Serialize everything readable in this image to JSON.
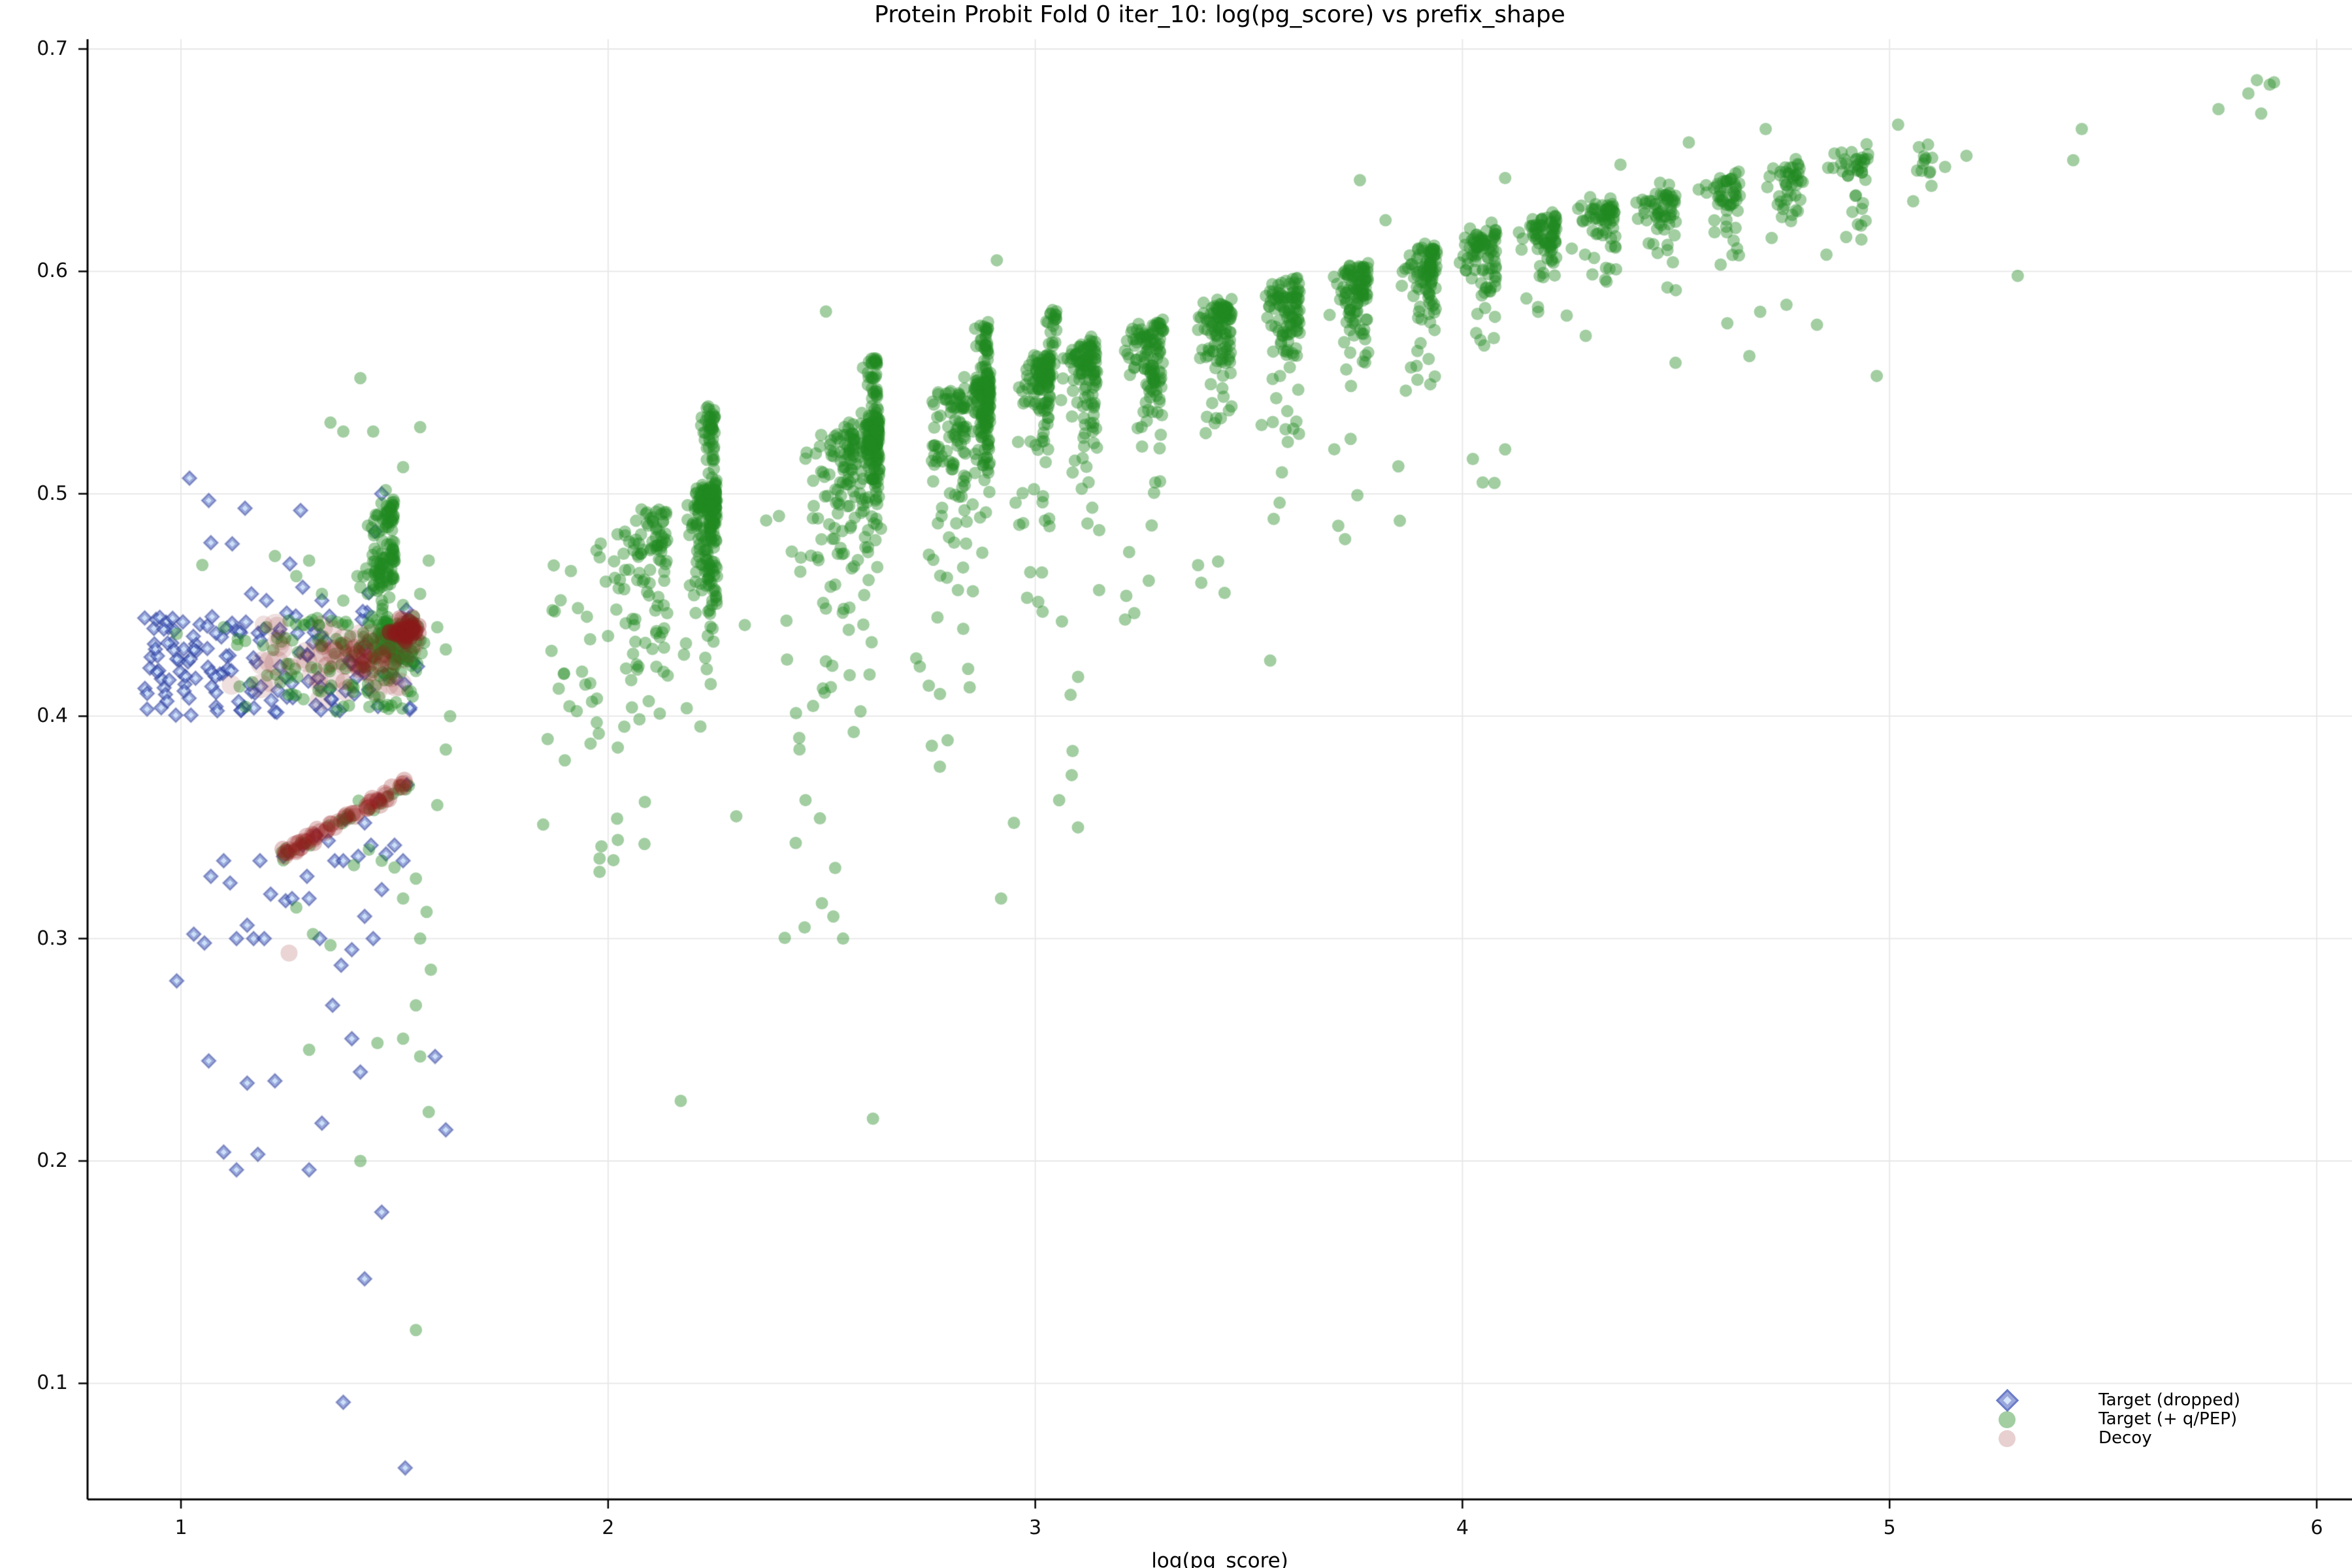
{
  "chart_data": {
    "type": "scatter",
    "title": "Protein Probit Fold 0 iter_10: log(pg_score) vs prefix_shape",
    "xlabel": "log(pg_score)",
    "ylabel": "",
    "xlim": [
      0.78,
      6.08
    ],
    "ylim": [
      0.048,
      0.704
    ],
    "xticks": [
      1,
      2,
      3,
      4,
      5,
      6
    ],
    "xtick_labels": [
      "1",
      "2",
      "3",
      "4",
      "5",
      "6"
    ],
    "yticks": [
      0.1,
      0.2,
      0.3,
      0.4,
      0.5,
      0.6,
      0.7
    ],
    "ytick_labels": [
      "0.1",
      "0.2",
      "0.3",
      "0.4",
      "0.5",
      "0.6",
      "0.7"
    ],
    "grid": true,
    "grid_color": "#e7e7e7",
    "spine_color": "#000000",
    "background": "#ffffff",
    "seed": 20240,
    "legend": {
      "position": "lower right",
      "entries": [
        {
          "label": "Target (dropped)",
          "marker": "diamond",
          "face": "#9ba7db",
          "edge": "#6b7cc8",
          "center": "#d6e6fb"
        },
        {
          "label": "Target (+ q/PEP)",
          "marker": "circle",
          "color": "#a2cea2"
        },
        {
          "label": "Decoy",
          "marker": "circle",
          "color": "#e8d0d0"
        }
      ]
    },
    "line": {
      "a": [
        1.225,
        0.3365
      ],
      "b": [
        1.532,
        0.3695
      ]
    },
    "series": [
      {
        "name": "Target (dropped)",
        "marker": "diamond",
        "face": "rgba(73,96,190,0.55)",
        "edge": "rgba(45,60,150,0.45)",
        "center": "rgba(208,230,252,0.90)",
        "size": 15,
        "band": {
          "x0": 0.915,
          "x1": 1.555,
          "y0": 0.4,
          "y1": 0.4455,
          "n": 150,
          "skew": 1.35
        },
        "above": [
          [
            1.02,
            0.507
          ],
          [
            1.065,
            0.497
          ],
          [
            1.15,
            0.4935
          ],
          [
            1.28,
            0.4925
          ],
          [
            1.07,
            0.478
          ],
          [
            1.12,
            0.4775
          ],
          [
            1.165,
            0.455
          ],
          [
            1.2,
            0.452
          ],
          [
            1.255,
            0.4685
          ],
          [
            1.285,
            0.458
          ],
          [
            1.33,
            0.452
          ],
          [
            1.44,
            0.4555
          ],
          [
            1.455,
            0.483
          ],
          [
            1.47,
            0.5
          ]
        ],
        "below": [
          [
            0.99,
            0.281
          ],
          [
            1.03,
            0.302
          ],
          [
            1.055,
            0.298
          ],
          [
            1.07,
            0.328
          ],
          [
            1.1,
            0.335
          ],
          [
            1.115,
            0.325
          ],
          [
            1.065,
            0.245
          ],
          [
            1.1,
            0.204
          ],
          [
            1.13,
            0.196
          ],
          [
            1.155,
            0.306
          ],
          [
            1.17,
            0.3
          ],
          [
            1.185,
            0.335
          ],
          [
            1.195,
            0.3
          ],
          [
            1.21,
            0.32
          ],
          [
            1.24,
            0.337
          ],
          [
            1.245,
            0.317
          ],
          [
            1.26,
            0.318
          ],
          [
            1.285,
            0.342
          ],
          [
            1.295,
            0.328
          ],
          [
            1.3,
            0.318
          ],
          [
            1.325,
            0.3
          ],
          [
            1.345,
            0.344
          ],
          [
            1.36,
            0.335
          ],
          [
            1.38,
            0.335
          ],
          [
            1.415,
            0.337
          ],
          [
            1.43,
            0.352
          ],
          [
            1.445,
            0.342
          ],
          [
            1.47,
            0.322
          ],
          [
            1.48,
            0.338
          ],
          [
            1.5,
            0.342
          ],
          [
            1.52,
            0.335
          ],
          [
            1.355,
            0.27
          ],
          [
            1.4,
            0.255
          ],
          [
            1.42,
            0.24
          ],
          [
            1.22,
            0.236
          ],
          [
            1.33,
            0.217
          ],
          [
            1.155,
            0.235
          ],
          [
            1.18,
            0.203
          ],
          [
            1.3,
            0.196
          ],
          [
            1.47,
            0.177
          ],
          [
            1.43,
            0.147
          ],
          [
            1.38,
            0.0915
          ],
          [
            1.525,
            0.062
          ],
          [
            1.595,
            0.247
          ],
          [
            1.62,
            0.214
          ],
          [
            1.13,
            0.3
          ],
          [
            1.45,
            0.3
          ],
          [
            1.43,
            0.31
          ],
          [
            1.4,
            0.295
          ],
          [
            1.375,
            0.288
          ]
        ],
        "line_u": [
          0.08,
          0.3,
          0.52,
          0.78,
          0.99
        ]
      },
      {
        "name": "Target (+ q/PEP)",
        "marker": "circle",
        "color": "rgba(34,139,34,0.42)",
        "size": 9.5,
        "band": {
          "x0": 1.08,
          "x1": 1.555,
          "y0": 0.401,
          "y1": 0.4435,
          "n": 150,
          "skew": 0.5
        },
        "band_core": {
          "cx": 1.495,
          "cy": 0.4325,
          "sx": 0.028,
          "sy": 0.0055,
          "n": 85
        },
        "clusters": [
          [
            1.5,
            0.4755,
            0.095,
            70,
            0.011
          ],
          [
            1.5,
            0.498,
            0.075,
            55,
            0.009
          ],
          [
            2.14,
            0.495,
            0.2,
            110,
            0.035
          ],
          [
            2.255,
            0.505,
            0.075,
            210,
            0.022
          ],
          [
            2.25,
            0.538,
            0.04,
            50,
            0.016
          ],
          [
            2.58,
            0.531,
            0.13,
            110,
            0.04
          ],
          [
            2.635,
            0.535,
            0.06,
            170,
            0.022
          ],
          [
            2.63,
            0.563,
            0.04,
            40,
            0.015
          ],
          [
            2.84,
            0.549,
            0.12,
            100,
            0.035
          ],
          [
            2.895,
            0.553,
            0.05,
            150,
            0.02
          ],
          [
            2.89,
            0.576,
            0.035,
            35,
            0.013
          ],
          [
            3.035,
            0.562,
            0.09,
            120,
            0.025
          ],
          [
            3.05,
            0.582,
            0.03,
            22,
            0.01
          ],
          [
            3.145,
            0.569,
            0.09,
            115,
            0.024
          ],
          [
            3.3,
            0.578,
            0.1,
            115,
            0.023
          ],
          [
            3.46,
            0.587,
            0.1,
            110,
            0.022
          ],
          [
            3.62,
            0.5955,
            0.1,
            110,
            0.021
          ],
          [
            3.78,
            0.604,
            0.1,
            105,
            0.02
          ],
          [
            3.94,
            0.612,
            0.1,
            100,
            0.019
          ],
          [
            4.08,
            0.6185,
            0.11,
            88,
            0.018
          ],
          [
            4.22,
            0.625,
            0.11,
            78,
            0.017
          ],
          [
            4.36,
            0.631,
            0.11,
            68,
            0.016
          ],
          [
            4.5,
            0.6375,
            0.11,
            60,
            0.016
          ],
          [
            4.65,
            0.6435,
            0.11,
            54,
            0.015
          ],
          [
            4.8,
            0.649,
            0.11,
            45,
            0.015
          ],
          [
            4.95,
            0.6545,
            0.11,
            38,
            0.014
          ],
          [
            5.1,
            0.655,
            0.09,
            12,
            0.01
          ]
        ],
        "tails": [
          [
            2.1,
            0.28,
            0.455,
            0.335,
            26
          ],
          [
            2.25,
            0.08,
            0.465,
            0.39,
            10
          ],
          [
            2.57,
            0.16,
            0.48,
            0.3,
            20
          ],
          [
            2.64,
            0.07,
            0.49,
            0.4,
            8
          ],
          [
            2.86,
            0.15,
            0.5,
            0.35,
            15
          ],
          [
            3.04,
            0.1,
            0.515,
            0.42,
            8
          ],
          [
            3.15,
            0.1,
            0.52,
            0.36,
            9
          ],
          [
            3.3,
            0.1,
            0.53,
            0.44,
            8
          ],
          [
            3.46,
            0.1,
            0.535,
            0.45,
            7
          ],
          [
            3.62,
            0.1,
            0.545,
            0.46,
            6
          ],
          [
            3.78,
            0.1,
            0.555,
            0.47,
            6
          ],
          [
            3.94,
            0.1,
            0.56,
            0.48,
            5
          ],
          [
            4.25,
            0.35,
            0.585,
            0.5,
            6
          ],
          [
            4.75,
            0.35,
            0.6,
            0.52,
            5
          ],
          [
            1.95,
            0.1,
            0.47,
            0.4,
            8
          ]
        ],
        "sparse": [
          [
            1.33,
            0.455
          ],
          [
            1.38,
            0.452
          ],
          [
            1.42,
            0.458
          ],
          [
            1.47,
            0.452
          ],
          [
            1.52,
            0.45
          ],
          [
            1.56,
            0.455
          ],
          [
            1.3,
            0.47
          ],
          [
            1.58,
            0.47
          ],
          [
            1.35,
            0.532
          ],
          [
            1.38,
            0.528
          ],
          [
            1.42,
            0.552
          ],
          [
            1.45,
            0.528
          ],
          [
            1.52,
            0.512
          ],
          [
            1.56,
            0.53
          ],
          [
            1.05,
            0.468
          ],
          [
            1.22,
            0.472
          ],
          [
            1.27,
            0.463
          ],
          [
            1.6,
            0.44
          ],
          [
            1.62,
            0.43
          ],
          [
            1.63,
            0.4
          ],
          [
            1.1,
            0.44
          ],
          [
            0.99,
            0.437
          ]
        ],
        "below": [
          [
            1.27,
            0.314
          ],
          [
            1.309,
            0.302
          ],
          [
            1.35,
            0.297
          ],
          [
            1.405,
            0.333
          ],
          [
            1.44,
            0.34
          ],
          [
            1.47,
            0.335
          ],
          [
            1.5,
            0.332
          ],
          [
            1.52,
            0.318
          ],
          [
            1.55,
            0.327
          ],
          [
            1.56,
            0.3
          ],
          [
            1.575,
            0.312
          ],
          [
            1.585,
            0.286
          ],
          [
            1.55,
            0.27
          ],
          [
            1.52,
            0.255
          ],
          [
            1.56,
            0.247
          ],
          [
            1.3,
            0.25
          ],
          [
            1.42,
            0.2
          ],
          [
            1.55,
            0.124
          ],
          [
            1.46,
            0.253
          ],
          [
            1.58,
            0.222
          ],
          [
            1.6,
            0.36
          ],
          [
            1.62,
            0.385
          ]
        ],
        "outliers": [
          [
            2.17,
            0.227
          ],
          [
            2.62,
            0.219
          ],
          [
            2.55,
            0.3
          ],
          [
            2.46,
            0.305
          ],
          [
            2.3,
            0.355
          ],
          [
            2.92,
            0.318
          ],
          [
            2.95,
            0.352
          ],
          [
            3.1,
            0.35
          ],
          [
            3.55,
            0.425
          ],
          [
            4.1,
            0.52
          ],
          [
            4.97,
            0.553
          ],
          [
            4.83,
            0.576
          ],
          [
            1.98,
            0.336
          ],
          [
            1.98,
            0.33
          ],
          [
            2.91,
            0.605
          ],
          [
            2.51,
            0.582
          ],
          [
            3.76,
            0.641
          ],
          [
            3.82,
            0.623
          ],
          [
            4.1,
            0.642
          ],
          [
            4.37,
            0.648
          ],
          [
            4.53,
            0.658
          ],
          [
            4.71,
            0.664
          ],
          [
            5.02,
            0.666
          ],
          [
            4.92,
            0.634
          ],
          [
            4.89,
            0.645
          ],
          [
            5.09,
            0.657
          ],
          [
            5.13,
            0.647
          ],
          [
            5.18,
            0.652
          ],
          [
            5.43,
            0.65
          ],
          [
            5.45,
            0.664
          ],
          [
            5.77,
            0.673
          ],
          [
            5.84,
            0.68
          ],
          [
            5.86,
            0.686
          ],
          [
            5.89,
            0.684
          ],
          [
            5.9,
            0.685
          ],
          [
            5.87,
            0.671
          ],
          [
            5.3,
            0.598
          ],
          [
            2.37,
            0.488
          ],
          [
            2.4,
            0.49
          ],
          [
            2.43,
            0.474
          ],
          [
            2.45,
            0.465
          ],
          [
            2.32,
            0.441
          ]
        ],
        "line_n": 26
      },
      {
        "name": "Decoy",
        "marker": "circle",
        "band": {
          "x0": 1.07,
          "x1": 1.56,
          "y0": 0.406,
          "y1": 0.441,
          "n": 55,
          "skew": 0.55,
          "rmin": 13,
          "rmax": 19,
          "color": "rgba(150,40,40,0.15)"
        },
        "blob": {
          "cx": 1.523,
          "cy": 0.4385,
          "sx": 0.018,
          "sy": 0.0022,
          "n": 55,
          "r": 12,
          "color": "rgba(139,26,26,0.30)"
        },
        "mid": {
          "cx": 1.435,
          "cy": 0.4255,
          "sx": 0.035,
          "sy": 0.005,
          "n": 30,
          "r": 13,
          "color": "rgba(145,32,32,0.22)"
        },
        "line": {
          "n": 60,
          "r": 13,
          "color": "rgba(150,32,32,0.26)"
        },
        "singles": {
          "points": [
            [
              1.253,
              0.2935
            ]
          ],
          "r": 13,
          "color": "rgba(150,40,40,0.20)"
        }
      }
    ]
  }
}
